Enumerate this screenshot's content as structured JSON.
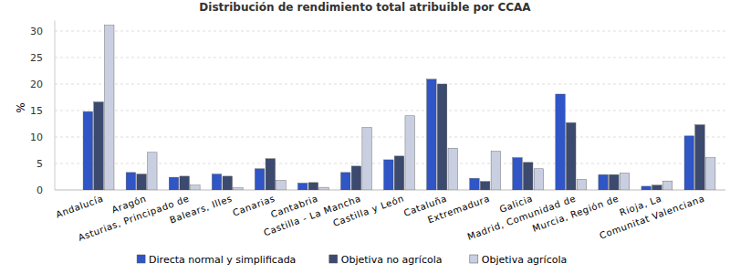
{
  "chart_data": {
    "type": "bar",
    "title": "Distribución de rendimiento total atribuible por CCAA",
    "y_label": "%",
    "categories": [
      "Andalucía",
      "Aragón",
      "Asturias, Principado de",
      "Balears, Illes",
      "Canarias",
      "Cantabria",
      "Castilla - La Mancha",
      "Castilla y León",
      "Cataluña",
      "Extremadura",
      "Galicia",
      "Madrid, Comunidad de",
      "Murcia, Región de",
      "Rioja, La",
      "Comunitat Valenciana"
    ],
    "series": [
      {
        "name": "Directa normal y simplificada",
        "color": "#2f55c6",
        "values": [
          14.8,
          3.3,
          2.4,
          3.0,
          4.0,
          1.3,
          3.3,
          5.7,
          20.9,
          2.2,
          6.1,
          18.1,
          2.9,
          0.7,
          10.2
        ]
      },
      {
        "name": "Objetiva no agrícola",
        "color": "#3b4a6e",
        "values": [
          16.6,
          3.0,
          2.6,
          2.6,
          5.9,
          1.4,
          4.5,
          6.4,
          20.0,
          1.6,
          5.2,
          12.7,
          2.9,
          0.9,
          12.3
        ]
      },
      {
        "name": "Objetiva agrícola",
        "color": "#c9cfe1",
        "values": [
          31.1,
          7.1,
          0.9,
          0.4,
          1.8,
          0.5,
          11.8,
          14.0,
          7.9,
          7.3,
          4.0,
          2.0,
          3.2,
          1.7,
          6.1
        ]
      }
    ],
    "ylim": [
      0,
      32
    ],
    "yticks": [
      0,
      5,
      10,
      15,
      20,
      25,
      30
    ],
    "grid": true,
    "legend": "bottom"
  }
}
